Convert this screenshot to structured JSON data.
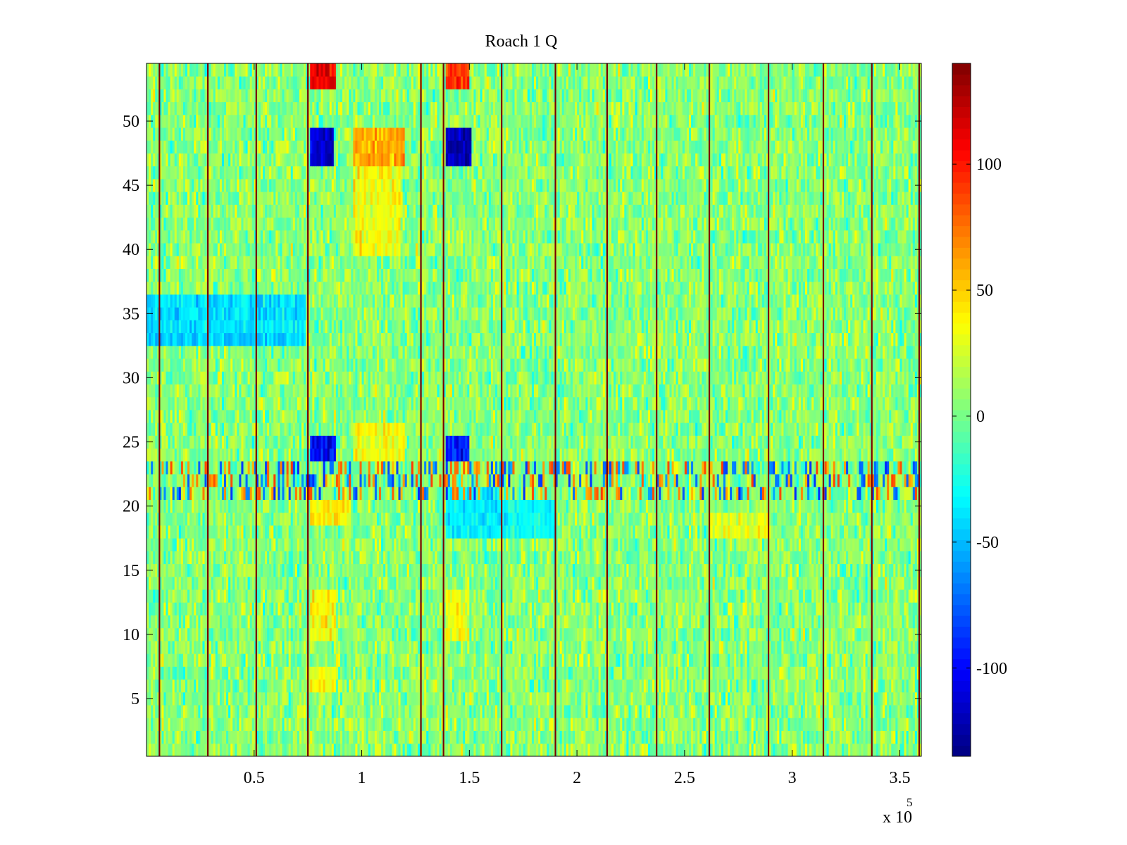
{
  "chart_data": {
    "type": "heatmap",
    "title": "Roach 1 Q",
    "xlabel": "",
    "ylabel": "",
    "x_multiplier_label": "x 10",
    "x_multiplier_exponent": "5",
    "xlim": [
      0,
      360000
    ],
    "ylim": [
      0.5,
      54.5
    ],
    "x_ticks": [
      50000,
      100000,
      150000,
      200000,
      250000,
      300000,
      350000
    ],
    "x_tick_labels": [
      "0.5",
      "1",
      "1.5",
      "2",
      "2.5",
      "3",
      "3.5"
    ],
    "y_ticks": [
      5,
      10,
      15,
      20,
      25,
      30,
      35,
      40,
      45,
      50
    ],
    "y_tick_labels": [
      "5",
      "10",
      "15",
      "20",
      "25",
      "30",
      "35",
      "40",
      "45",
      "50"
    ],
    "colorbar": {
      "range": [
        -135,
        140
      ],
      "ticks": [
        -100,
        -50,
        0,
        50,
        100
      ],
      "tick_labels": [
        "-100",
        "-50",
        "0",
        "50",
        "100"
      ],
      "colormap": "jet"
    },
    "rows": 54,
    "grid": false,
    "background_value": 5,
    "noise_amplitude": 18,
    "boundary_lines_x": [
      6000,
      28500,
      51000,
      75000,
      127500,
      138000,
      165000,
      190000,
      214000,
      237000,
      261500,
      289000,
      314500,
      337000,
      359000
    ],
    "boundary_line_color": "#7a0000",
    "features": [
      {
        "x": [
          76000,
          88000
        ],
        "y": [
          53,
          54
        ],
        "value": 110
      },
      {
        "x": [
          139000,
          150000
        ],
        "y": [
          53,
          54
        ],
        "value": 95
      },
      {
        "x": [
          76000,
          87000
        ],
        "y": [
          47,
          49
        ],
        "value": -115
      },
      {
        "x": [
          139000,
          151000
        ],
        "y": [
          47,
          49
        ],
        "value": -120
      },
      {
        "x": [
          96000,
          120000
        ],
        "y": [
          47,
          49
        ],
        "value": 60
      },
      {
        "x": [
          96000,
          118000
        ],
        "y": [
          40,
          46
        ],
        "value": 35
      },
      {
        "x": [
          76000,
          88000
        ],
        "y": [
          24,
          25
        ],
        "value": -100
      },
      {
        "x": [
          139000,
          150000
        ],
        "y": [
          24,
          25
        ],
        "value": -95
      },
      {
        "x": [
          96000,
          120000
        ],
        "y": [
          24,
          26
        ],
        "value": 35
      },
      {
        "x": [
          76000,
          95000
        ],
        "y": [
          19,
          20
        ],
        "value": 40
      },
      {
        "x": [
          76000,
          88000
        ],
        "y": [
          10,
          13
        ],
        "value": 38
      },
      {
        "x": [
          139000,
          150000
        ],
        "y": [
          10,
          13
        ],
        "value": 32
      },
      {
        "x": [
          76000,
          88000
        ],
        "y": [
          6,
          7
        ],
        "value": 40
      },
      {
        "x": [
          0,
          74000
        ],
        "y": [
          33,
          36
        ],
        "value": -40
      },
      {
        "x": [
          139000,
          165000
        ],
        "y": [
          18,
          21
        ],
        "value": -35
      },
      {
        "x": [
          165000,
          190000
        ],
        "y": [
          18,
          20
        ],
        "value": -30
      },
      {
        "x": [
          261500,
          289000
        ],
        "y": [
          18,
          19
        ],
        "value": 30
      }
    ],
    "striped_band": {
      "y": [
        21,
        23
      ],
      "x": [
        0,
        359000
      ],
      "amplitude": 90
    }
  }
}
